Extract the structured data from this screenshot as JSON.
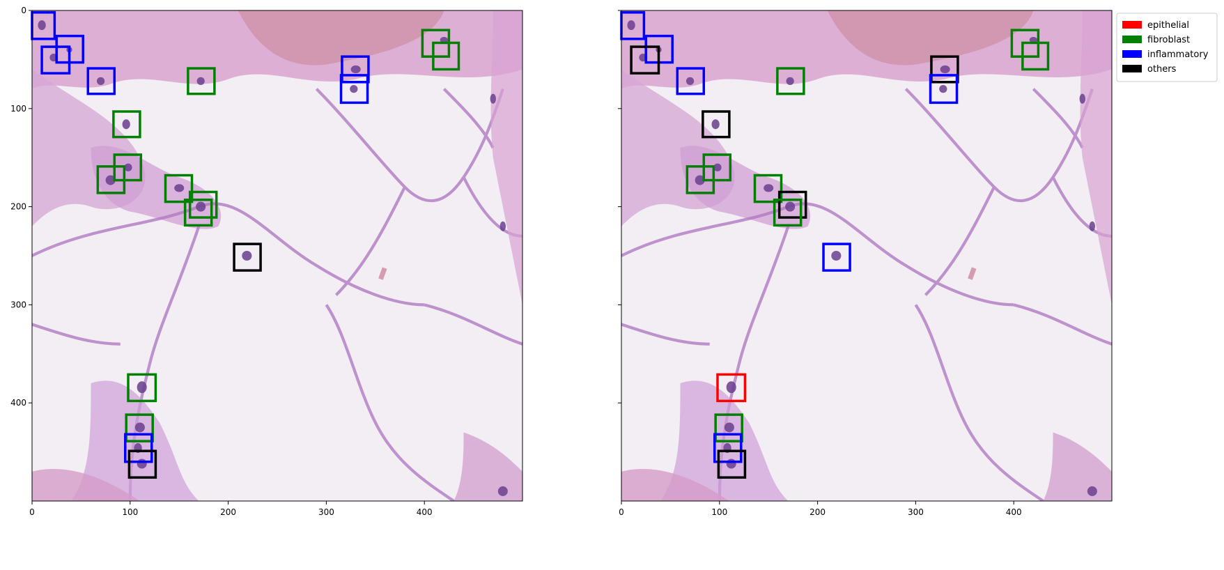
{
  "figure": {
    "x_ticks": [
      "0",
      "100",
      "200",
      "300",
      "400"
    ],
    "y_ticks": [
      "0",
      "100",
      "200",
      "300",
      "400"
    ],
    "x_tick_values": [
      0,
      100,
      200,
      300,
      400
    ],
    "y_tick_values": [
      0,
      100,
      200,
      300,
      400
    ],
    "image_extent": [
      0,
      500,
      500,
      0
    ]
  },
  "legend": {
    "placement": "upper-right-outside",
    "items": [
      {
        "label": "epithelial",
        "color": "#ff0000"
      },
      {
        "label": "fibroblast",
        "color": "#008000"
      },
      {
        "label": "inflammatory",
        "color": "#0000ff"
      },
      {
        "label": "others",
        "color": "#000000"
      }
    ]
  },
  "panels": [
    {
      "name": "left",
      "boxes": [
        {
          "cls": "inflammatory",
          "x": 0,
          "y": 2,
          "w": 23,
          "h": 27
        },
        {
          "cls": "inflammatory",
          "x": 25,
          "y": 26,
          "w": 27,
          "h": 27
        },
        {
          "cls": "inflammatory",
          "x": 10,
          "y": 37,
          "w": 28,
          "h": 27
        },
        {
          "cls": "inflammatory",
          "x": 57,
          "y": 59,
          "w": 27,
          "h": 26
        },
        {
          "cls": "fibroblast",
          "x": 398,
          "y": 20,
          "w": 27,
          "h": 27
        },
        {
          "cls": "fibroblast",
          "x": 409,
          "y": 33,
          "w": 26,
          "h": 27
        },
        {
          "cls": "inflammatory",
          "x": 316,
          "y": 47,
          "w": 27,
          "h": 26
        },
        {
          "cls": "inflammatory",
          "x": 315,
          "y": 66,
          "w": 27,
          "h": 28
        },
        {
          "cls": "fibroblast",
          "x": 159,
          "y": 59,
          "w": 27,
          "h": 26
        },
        {
          "cls": "fibroblast",
          "x": 83,
          "y": 103,
          "w": 27,
          "h": 26
        },
        {
          "cls": "fibroblast",
          "x": 84,
          "y": 147,
          "w": 27,
          "h": 26
        },
        {
          "cls": "fibroblast",
          "x": 67,
          "y": 159,
          "w": 27,
          "h": 27
        },
        {
          "cls": "fibroblast",
          "x": 136,
          "y": 168,
          "w": 27,
          "h": 27
        },
        {
          "cls": "fibroblast",
          "x": 161,
          "y": 185,
          "w": 27,
          "h": 26
        },
        {
          "cls": "fibroblast",
          "x": 156,
          "y": 193,
          "w": 27,
          "h": 26
        },
        {
          "cls": "others",
          "x": 206,
          "y": 238,
          "w": 27,
          "h": 27
        },
        {
          "cls": "fibroblast",
          "x": 98,
          "y": 371,
          "w": 28,
          "h": 27
        },
        {
          "cls": "fibroblast",
          "x": 96,
          "y": 412,
          "w": 27,
          "h": 27
        },
        {
          "cls": "inflammatory",
          "x": 95,
          "y": 432,
          "w": 27,
          "h": 28
        },
        {
          "cls": "others",
          "x": 99,
          "y": 449,
          "w": 27,
          "h": 27
        }
      ]
    },
    {
      "name": "right",
      "boxes": [
        {
          "cls": "inflammatory",
          "x": 0,
          "y": 2,
          "w": 23,
          "h": 27
        },
        {
          "cls": "inflammatory",
          "x": 25,
          "y": 26,
          "w": 27,
          "h": 27
        },
        {
          "cls": "others",
          "x": 10,
          "y": 37,
          "w": 28,
          "h": 27
        },
        {
          "cls": "inflammatory",
          "x": 57,
          "y": 59,
          "w": 27,
          "h": 26
        },
        {
          "cls": "fibroblast",
          "x": 398,
          "y": 20,
          "w": 27,
          "h": 27
        },
        {
          "cls": "fibroblast",
          "x": 409,
          "y": 33,
          "w": 26,
          "h": 27
        },
        {
          "cls": "others",
          "x": 316,
          "y": 47,
          "w": 27,
          "h": 26
        },
        {
          "cls": "inflammatory",
          "x": 315,
          "y": 66,
          "w": 27,
          "h": 28
        },
        {
          "cls": "fibroblast",
          "x": 159,
          "y": 59,
          "w": 27,
          "h": 26
        },
        {
          "cls": "others",
          "x": 83,
          "y": 103,
          "w": 27,
          "h": 26
        },
        {
          "cls": "fibroblast",
          "x": 84,
          "y": 147,
          "w": 27,
          "h": 26
        },
        {
          "cls": "fibroblast",
          "x": 67,
          "y": 159,
          "w": 27,
          "h": 27
        },
        {
          "cls": "fibroblast",
          "x": 136,
          "y": 168,
          "w": 27,
          "h": 27
        },
        {
          "cls": "others",
          "x": 161,
          "y": 185,
          "w": 27,
          "h": 26
        },
        {
          "cls": "fibroblast",
          "x": 156,
          "y": 193,
          "w": 27,
          "h": 26
        },
        {
          "cls": "inflammatory",
          "x": 206,
          "y": 238,
          "w": 27,
          "h": 27
        },
        {
          "cls": "epithelial",
          "x": 98,
          "y": 371,
          "w": 28,
          "h": 27
        },
        {
          "cls": "fibroblast",
          "x": 96,
          "y": 412,
          "w": 27,
          "h": 27
        },
        {
          "cls": "inflammatory",
          "x": 95,
          "y": 432,
          "w": 27,
          "h": 28
        },
        {
          "cls": "others",
          "x": 99,
          "y": 449,
          "w": 27,
          "h": 27
        }
      ]
    }
  ]
}
